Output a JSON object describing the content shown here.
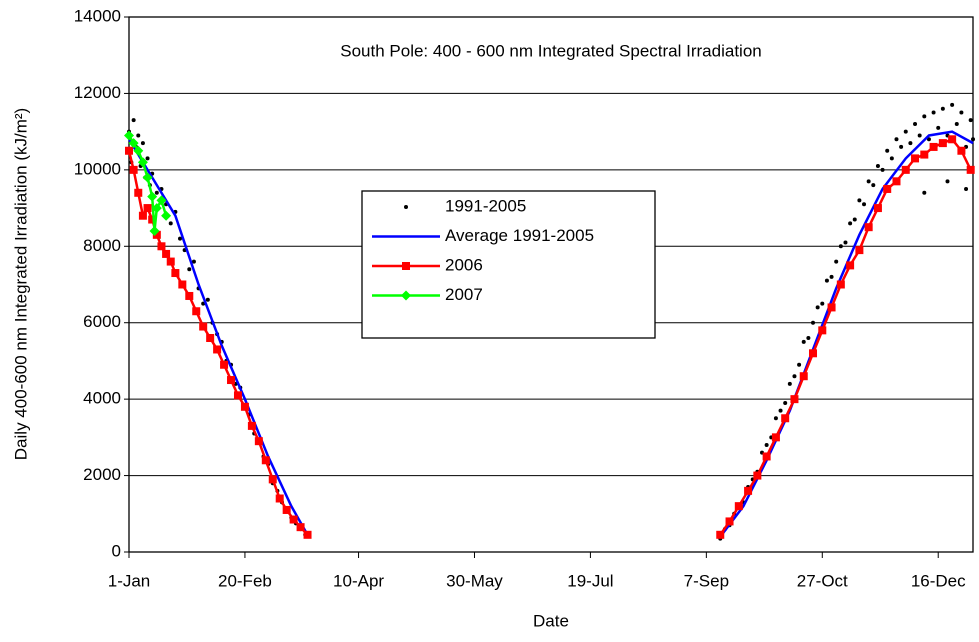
{
  "chart_data": {
    "type": "scatter",
    "title": "South Pole: 400 - 600 nm Integrated Spectral Irradiation",
    "x_label": "Date",
    "y_label": "Daily 400-600 nm Integrated Irradiation (kJ/m²)",
    "xlim": [
      0,
      364
    ],
    "ylim": [
      0,
      14000
    ],
    "xticks": [
      {
        "value": 0,
        "label": "1-Jan"
      },
      {
        "value": 50,
        "label": "20-Feb"
      },
      {
        "value": 99,
        "label": "10-Apr"
      },
      {
        "value": 149,
        "label": "30-May"
      },
      {
        "value": 199,
        "label": "19-Jul"
      },
      {
        "value": 249,
        "label": "7-Sep"
      },
      {
        "value": 299,
        "label": "27-Oct"
      },
      {
        "value": 349,
        "label": "16-Dec"
      }
    ],
    "yticks": [
      0,
      2000,
      4000,
      6000,
      8000,
      10000,
      12000,
      14000
    ],
    "grid": true,
    "legend": "center",
    "series": [
      {
        "name": "1991-2005",
        "color": "#000000",
        "line": false,
        "marker": "dot",
        "x": [
          0,
          1,
          2,
          3,
          4,
          5,
          6,
          7,
          8,
          9,
          10,
          12,
          14,
          16,
          18,
          20,
          22,
          24,
          26,
          28,
          30,
          32,
          34,
          36,
          38,
          40,
          42,
          44,
          46,
          48,
          50,
          52,
          54,
          56,
          58,
          60,
          62,
          64,
          66,
          68,
          70,
          72,
          74,
          76,
          255,
          257,
          259,
          261,
          263,
          265,
          267,
          269,
          271,
          273,
          275,
          277,
          279,
          281,
          283,
          285,
          287,
          289,
          291,
          293,
          295,
          297,
          299,
          301,
          303,
          305,
          307,
          309,
          311,
          313,
          315,
          317,
          319,
          321,
          323,
          325,
          327,
          329,
          331,
          333,
          335,
          337,
          339,
          341,
          343,
          345,
          347,
          349,
          351,
          353,
          355,
          357,
          359,
          361,
          363,
          364,
          343,
          353,
          361
        ],
        "values": [
          11000,
          10200,
          11300,
          10600,
          10900,
          10100,
          10700,
          9800,
          10300,
          9600,
          9900,
          9400,
          9500,
          9100,
          8600,
          8900,
          8200,
          7900,
          7400,
          7600,
          6900,
          6500,
          6600,
          6000,
          5700,
          5500,
          5000,
          4900,
          4400,
          4300,
          3800,
          3600,
          3100,
          2900,
          2500,
          2300,
          1800,
          1600,
          1300,
          1100,
          900,
          750,
          600,
          450,
          350,
          600,
          700,
          1000,
          1200,
          1300,
          1700,
          1900,
          2100,
          2600,
          2800,
          3000,
          3500,
          3700,
          3900,
          4400,
          4600,
          4900,
          5500,
          5600,
          6000,
          6400,
          6500,
          7100,
          7200,
          7600,
          8000,
          8100,
          8600,
          8700,
          9200,
          9100,
          9700,
          9600,
          10100,
          10000,
          10500,
          10300,
          10800,
          10600,
          11000,
          10700,
          11200,
          10900,
          11400,
          10800,
          11500,
          11100,
          11600,
          10900,
          11700,
          11200,
          11500,
          10600,
          11300,
          10800,
          9400,
          9700,
          9500
        ]
      },
      {
        "name": "Average 1991-2005",
        "color": "#0000ff",
        "line": true,
        "marker": "none",
        "x": [
          0,
          10,
          20,
          30,
          40,
          50,
          60,
          70,
          77,
          160,
          255,
          265,
          275,
          285,
          295,
          305,
          315,
          325,
          335,
          345,
          355,
          364
        ],
        "values": [
          10800,
          9800,
          8800,
          7000,
          5400,
          4000,
          2500,
          1200,
          450,
          null,
          400,
          1200,
          2400,
          3700,
          5300,
          6900,
          8300,
          9500,
          10300,
          10900,
          11000,
          10700
        ]
      },
      {
        "name": "2006",
        "color": "#ff0000",
        "line": true,
        "marker": "square",
        "x": [
          0,
          2,
          4,
          6,
          8,
          10,
          12,
          14,
          16,
          18,
          20,
          23,
          26,
          29,
          32,
          35,
          38,
          41,
          44,
          47,
          50,
          53,
          56,
          59,
          62,
          65,
          68,
          71,
          74,
          77,
          160,
          255,
          259,
          263,
          267,
          271,
          275,
          279,
          283,
          287,
          291,
          295,
          299,
          303,
          307,
          311,
          315,
          319,
          323,
          327,
          331,
          335,
          339,
          343,
          347,
          351,
          355,
          359,
          363
        ],
        "values": [
          10500,
          10000,
          9400,
          8800,
          9000,
          8700,
          8300,
          8000,
          7800,
          7600,
          7300,
          7000,
          6700,
          6300,
          5900,
          5600,
          5300,
          4900,
          4500,
          4100,
          3800,
          3300,
          2900,
          2400,
          1900,
          1400,
          1100,
          850,
          650,
          450,
          null,
          450,
          800,
          1200,
          1600,
          2000,
          2500,
          3000,
          3500,
          4000,
          4600,
          5200,
          5800,
          6400,
          7000,
          7500,
          7900,
          8500,
          9000,
          9500,
          9700,
          10000,
          10300,
          10400,
          10600,
          10700,
          10800,
          10500,
          10000
        ]
      },
      {
        "name": "2007",
        "color": "#00ff00",
        "line": true,
        "marker": "diamond",
        "x": [
          0,
          2,
          4,
          6,
          8,
          10,
          11,
          12,
          14,
          16
        ],
        "values": [
          10900,
          10700,
          10500,
          10200,
          9800,
          9300,
          8400,
          9000,
          9200,
          8800
        ]
      }
    ]
  }
}
